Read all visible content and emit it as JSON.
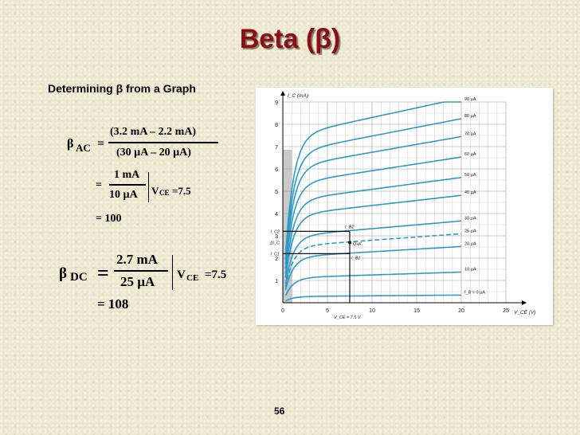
{
  "slide": {
    "title": "Beta (β)",
    "subtitle": "Determining β from a Graph",
    "page_number": "56"
  },
  "equations": {
    "beta_ac": {
      "symbol": "β",
      "subscript": "AC",
      "numerator": "(3.2 mA – 2.2 mA)",
      "denominator": "(30 µA – 20 µA)",
      "step2_numerator": "1 mA",
      "step2_denominator": "10 µA",
      "condition_var": "V",
      "condition_sub": "CE",
      "condition_value": "=7.5",
      "result": "= 100",
      "equals": "=",
      "step2_equals": "="
    },
    "beta_dc": {
      "symbol": "β",
      "subscript": "DC",
      "numerator": "2.7 mA",
      "denominator": "25 µA",
      "condition_var": "V",
      "condition_sub": "CE",
      "condition_value": "=7.5",
      "result": "= 108",
      "equals": "="
    }
  },
  "chart_data": {
    "type": "line",
    "xlabel": "V_CE (V)",
    "ylabel": "I_C (mA)",
    "xlim": [
      0,
      25
    ],
    "ylim": [
      0,
      9
    ],
    "x_ticks": [
      "0",
      "5",
      "10",
      "15",
      "20",
      "25"
    ],
    "y_ticks": [
      "1",
      "2",
      "3",
      "4",
      "5",
      "6",
      "7",
      "8",
      "9"
    ],
    "grid": true,
    "curve_color": "#2a9bc9",
    "series": [
      {
        "name": "90 µA",
        "saturation": 8.0,
        "x": [
          0.3,
          5,
          10,
          15,
          20
        ],
        "values": [
          6.0,
          7.55,
          7.8,
          8.0,
          8.2
        ]
      },
      {
        "name": "80 µA",
        "saturation": 7.2,
        "x": [
          0.3,
          5,
          10,
          15,
          20
        ],
        "values": [
          5.4,
          6.85,
          7.1,
          7.3,
          7.45
        ]
      },
      {
        "name": "70 µA",
        "saturation": 6.5,
        "x": [
          0.3,
          5,
          10,
          15,
          20
        ],
        "values": [
          4.8,
          6.1,
          6.4,
          6.6,
          6.8
        ]
      },
      {
        "name": "60 µA",
        "saturation": 5.7,
        "x": [
          0.3,
          5,
          10,
          15,
          20
        ],
        "values": [
          4.2,
          5.3,
          5.6,
          5.8,
          6.0
        ]
      },
      {
        "name": "50 µA",
        "saturation": 4.9,
        "x": [
          0.3,
          5,
          10,
          15,
          20
        ],
        "values": [
          3.6,
          4.6,
          4.8,
          5.0,
          5.2
        ]
      },
      {
        "name": "40 µA",
        "saturation": 4.2,
        "x": [
          0.3,
          5,
          10,
          15,
          20
        ],
        "values": [
          3.0,
          3.8,
          4.0,
          4.2,
          4.4
        ]
      },
      {
        "name": "30 µA",
        "saturation": 3.2,
        "x": [
          0.3,
          5,
          10,
          15,
          20
        ],
        "values": [
          2.4,
          3.0,
          3.2,
          3.35,
          3.5
        ]
      },
      {
        "name": "25 µA",
        "saturation": 2.7,
        "x": [
          0.3,
          5,
          10,
          15,
          20
        ],
        "values": [
          2.0,
          2.5,
          2.7,
          2.85,
          3.0
        ],
        "dashed": true
      },
      {
        "name": "20 µA",
        "saturation": 2.2,
        "x": [
          0.3,
          5,
          10,
          15,
          20
        ],
        "values": [
          1.7,
          2.05,
          2.2,
          2.35,
          2.45
        ]
      },
      {
        "name": "10 µA",
        "saturation": 1.2,
        "x": [
          0.3,
          5,
          10,
          15,
          20
        ],
        "values": [
          0.85,
          1.1,
          1.2,
          1.3,
          1.35
        ]
      },
      {
        "name": "I_B = 0 µA",
        "saturation": 0.3,
        "x": [
          0.3,
          5,
          10,
          15,
          20
        ],
        "values": [
          0.2,
          0.27,
          0.3,
          0.32,
          0.35
        ]
      }
    ],
    "annotations": {
      "ic2_label": "I_C2",
      "ic1_label": "I_C1",
      "delta_ic_label": "ΔI_C",
      "ib2_label": "I_B2",
      "ib1_label": "I_B1",
      "q_point_label": "Q-pt.",
      "vce_label": "V_CE = 7.5 V",
      "ic2_value": 3.2,
      "ic1_value": 2.2,
      "q_point_ic": 2.7,
      "vce_value": 7.5
    }
  }
}
